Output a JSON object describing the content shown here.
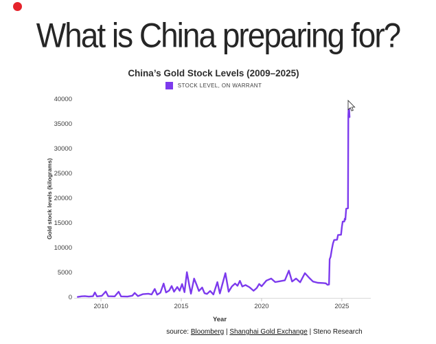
{
  "page": {
    "headline": "What is China preparing for?",
    "record_dot_color": "#e5232b"
  },
  "source": {
    "label": "source:",
    "separator": " | ",
    "items": [
      {
        "text": "Bloomberg",
        "underlined": true
      },
      {
        "text": "Shanghai Gold Exchange",
        "underlined": true
      },
      {
        "text": "Steno Research",
        "underlined": false
      }
    ]
  },
  "chart_data": {
    "type": "line",
    "title": "China’s Gold Stock Levels (2009–2025)",
    "xlabel": "Year",
    "ylabel": "Gold stock levels (kilograms)",
    "legend_position": "top",
    "grid": false,
    "axis_color": "#d9d9d9",
    "tick_color": "#c4c4c4",
    "xlim": [
      2008.5,
      2026.8
    ],
    "ylim": [
      0,
      40000
    ],
    "x_ticks": [
      2010,
      2015,
      2020,
      2025
    ],
    "y_ticks": [
      0,
      5000,
      10000,
      15000,
      20000,
      25000,
      30000,
      35000,
      40000
    ],
    "series": [
      {
        "name": "STOCK LEVEL, ON WARRANT",
        "color": "#7C3AED",
        "points": [
          [
            2008.55,
            200
          ],
          [
            2008.8,
            320
          ],
          [
            2009.0,
            360
          ],
          [
            2009.25,
            260
          ],
          [
            2009.5,
            330
          ],
          [
            2009.62,
            1100
          ],
          [
            2009.75,
            310
          ],
          [
            2010.05,
            420
          ],
          [
            2010.3,
            1300
          ],
          [
            2010.45,
            340
          ],
          [
            2010.85,
            300
          ],
          [
            2011.1,
            1250
          ],
          [
            2011.25,
            300
          ],
          [
            2011.65,
            260
          ],
          [
            2011.95,
            450
          ],
          [
            2012.1,
            1000
          ],
          [
            2012.3,
            360
          ],
          [
            2012.6,
            750
          ],
          [
            2012.95,
            850
          ],
          [
            2013.15,
            700
          ],
          [
            2013.35,
            1800
          ],
          [
            2013.5,
            650
          ],
          [
            2013.7,
            1050
          ],
          [
            2013.9,
            2900
          ],
          [
            2014.05,
            1100
          ],
          [
            2014.25,
            1500
          ],
          [
            2014.4,
            2400
          ],
          [
            2014.55,
            1250
          ],
          [
            2014.75,
            2200
          ],
          [
            2014.9,
            1450
          ],
          [
            2015.05,
            2800
          ],
          [
            2015.2,
            1150
          ],
          [
            2015.35,
            5200
          ],
          [
            2015.5,
            2500
          ],
          [
            2015.6,
            850
          ],
          [
            2015.8,
            3900
          ],
          [
            2015.95,
            2700
          ],
          [
            2016.1,
            1400
          ],
          [
            2016.3,
            2100
          ],
          [
            2016.45,
            950
          ],
          [
            2016.6,
            800
          ],
          [
            2016.8,
            1400
          ],
          [
            2017.0,
            700
          ],
          [
            2017.25,
            3200
          ],
          [
            2017.4,
            900
          ],
          [
            2017.75,
            5000
          ],
          [
            2017.95,
            1250
          ],
          [
            2018.15,
            2300
          ],
          [
            2018.35,
            2900
          ],
          [
            2018.5,
            2450
          ],
          [
            2018.65,
            3450
          ],
          [
            2018.8,
            2300
          ],
          [
            2019.0,
            2600
          ],
          [
            2019.25,
            2150
          ],
          [
            2019.5,
            1450
          ],
          [
            2019.7,
            2000
          ],
          [
            2019.85,
            2800
          ],
          [
            2020.0,
            2350
          ],
          [
            2020.3,
            3500
          ],
          [
            2020.6,
            3900
          ],
          [
            2020.85,
            3200
          ],
          [
            2021.1,
            3350
          ],
          [
            2021.45,
            3550
          ],
          [
            2021.7,
            5500
          ],
          [
            2021.9,
            3300
          ],
          [
            2022.15,
            3900
          ],
          [
            2022.4,
            3150
          ],
          [
            2022.7,
            5000
          ],
          [
            2022.95,
            4100
          ],
          [
            2023.2,
            3300
          ],
          [
            2023.5,
            3050
          ],
          [
            2023.85,
            3000
          ],
          [
            2024.0,
            2950
          ],
          [
            2024.1,
            2650
          ],
          [
            2024.2,
            2700
          ],
          [
            2024.24,
            7800
          ],
          [
            2024.3,
            8300
          ],
          [
            2024.38,
            9900
          ],
          [
            2024.45,
            11000
          ],
          [
            2024.52,
            11700
          ],
          [
            2024.7,
            11750
          ],
          [
            2024.76,
            12700
          ],
          [
            2024.95,
            12750
          ],
          [
            2025.0,
            14300
          ],
          [
            2025.05,
            15400
          ],
          [
            2025.15,
            15400
          ],
          [
            2025.18,
            16000
          ],
          [
            2025.22,
            15800
          ],
          [
            2025.27,
            18000
          ],
          [
            2025.38,
            18100
          ],
          [
            2025.4,
            36800
          ],
          [
            2025.43,
            39400
          ],
          [
            2025.48,
            36500
          ]
        ]
      }
    ]
  }
}
